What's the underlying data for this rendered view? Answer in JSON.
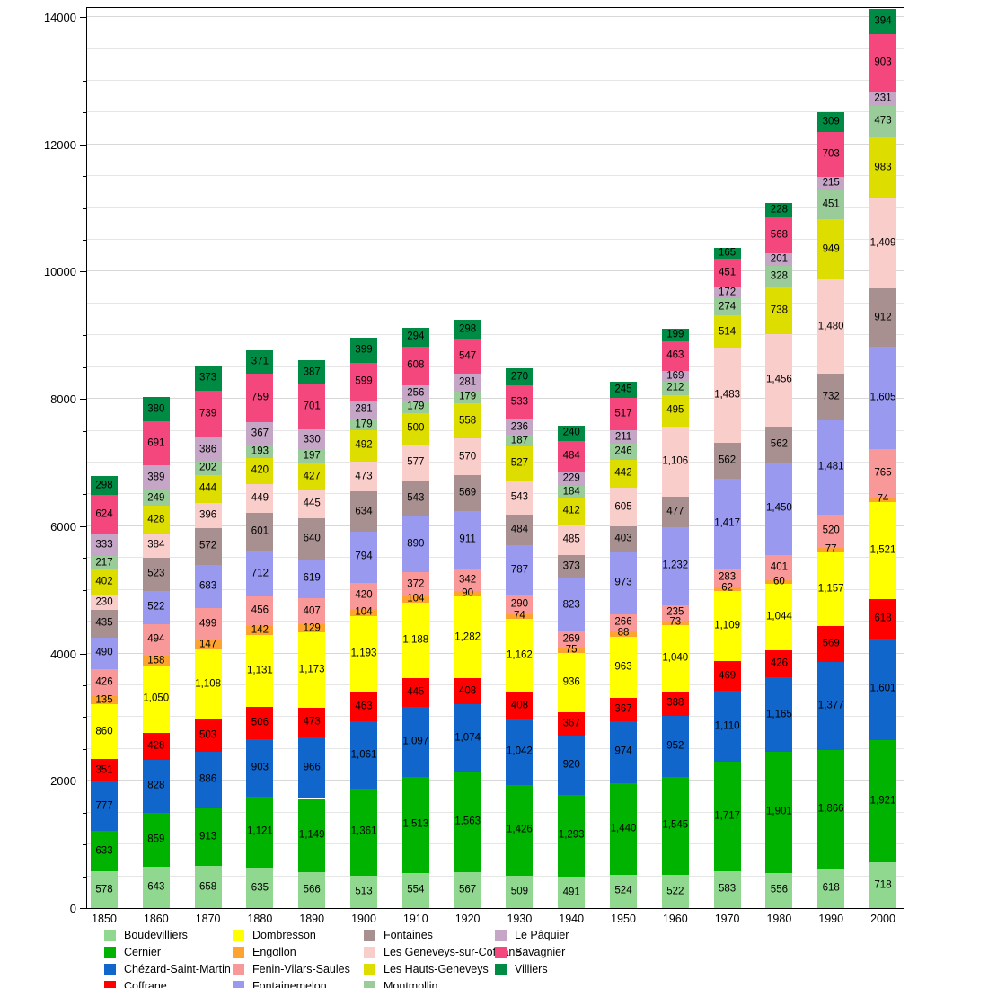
{
  "chart_data": {
    "type": "bar",
    "stacked": true,
    "title": "",
    "xlabel": "",
    "ylabel": "",
    "categories": [
      "1850",
      "1860",
      "1870",
      "1880",
      "1890",
      "1900",
      "1910",
      "1920",
      "1930",
      "1940",
      "1950",
      "1960",
      "1970",
      "1980",
      "1990",
      "2000"
    ],
    "series": [
      {
        "name": "Boudevilliers",
        "color": "#90d890",
        "values": [
          578,
          643,
          658,
          635,
          566,
          513,
          554,
          567,
          509,
          491,
          524,
          522,
          583,
          556,
          618,
          718
        ]
      },
      {
        "name": "Cernier",
        "color": "#00b300",
        "values": [
          633,
          859,
          913,
          1121,
          1149,
          1361,
          1513,
          1563,
          1426,
          1293,
          1440,
          1545,
          1717,
          1901,
          1866,
          1921
        ]
      },
      {
        "name": "Chézard-Saint-Martin",
        "color": "#1166cc",
        "values": [
          777,
          828,
          886,
          903,
          966,
          1061,
          1097,
          1074,
          1042,
          920,
          974,
          952,
          1110,
          1165,
          1377,
          1601
        ]
      },
      {
        "name": "Coffrane",
        "color": "#ff0000",
        "values": [
          351,
          428,
          503,
          506,
          473,
          463,
          445,
          408,
          408,
          367,
          367,
          388,
          469,
          426,
          569,
          618
        ]
      },
      {
        "name": "Dombresson",
        "color": "#ffff00",
        "values": [
          860,
          1050,
          1108,
          1131,
          1173,
          1193,
          1188,
          1282,
          1162,
          936,
          963,
          1040,
          1109,
          1044,
          1157,
          1521
        ]
      },
      {
        "name": "Engollon",
        "color": "#ffa330",
        "values": [
          135,
          158,
          147,
          142,
          129,
          104,
          104,
          90,
          74,
          75,
          88,
          73,
          62,
          60,
          77,
          74
        ]
      },
      {
        "name": "Fenin-Vilars-Saules",
        "color": "#f89898",
        "values": [
          426,
          494,
          499,
          456,
          407,
          420,
          372,
          342,
          290,
          269,
          266,
          235,
          283,
          401,
          520,
          765
        ]
      },
      {
        "name": "Fontainemelon",
        "color": "#9999f0",
        "values": [
          490,
          522,
          683,
          712,
          619,
          794,
          890,
          911,
          787,
          823,
          973,
          1232,
          1417,
          1450,
          1481,
          1605
        ]
      },
      {
        "name": "Fontaines",
        "color": "#a89090",
        "values": [
          435,
          523,
          572,
          601,
          640,
          634,
          543,
          569,
          484,
          373,
          403,
          477,
          562,
          562,
          732,
          912
        ]
      },
      {
        "name": "Les Geneveys-sur-Coffrane",
        "color": "#f9cdca",
        "values": [
          230,
          384,
          396,
          449,
          445,
          473,
          577,
          570,
          543,
          485,
          605,
          1106,
          1483,
          1456,
          1480,
          1409
        ]
      },
      {
        "name": "Les Hauts-Geneveys",
        "color": "#dddd00",
        "values": [
          402,
          428,
          444,
          420,
          427,
          492,
          500,
          558,
          527,
          412,
          442,
          495,
          514,
          738,
          949,
          983
        ]
      },
      {
        "name": "Montmollin",
        "color": "#99cc99",
        "values": [
          217,
          249,
          202,
          193,
          197,
          179,
          179,
          179,
          187,
          184,
          246,
          212,
          274,
          328,
          451,
          473
        ]
      },
      {
        "name": "Le Pâquier",
        "color": "#c6a6c6",
        "values": [
          333,
          389,
          386,
          367,
          330,
          281,
          256,
          281,
          236,
          229,
          211,
          169,
          172,
          201,
          215,
          231
        ]
      },
      {
        "name": "Savagnier",
        "color": "#f4477e",
        "values": [
          624,
          691,
          739,
          759,
          701,
          599,
          608,
          547,
          533,
          484,
          517,
          463,
          451,
          568,
          703,
          903
        ]
      },
      {
        "name": "Villiers",
        "color": "#008b45",
        "values": [
          298,
          380,
          373,
          371,
          387,
          399,
          294,
          298,
          270,
          240,
          245,
          199,
          165,
          228,
          309,
          394
        ]
      }
    ],
    "ylim": [
      0,
      14000
    ],
    "y_tick_labels": [
      "0",
      "2000",
      "4000",
      "6000",
      "8000",
      "10000",
      "12000",
      "14000"
    ],
    "y_tick_interval": 2000,
    "grid_interval": 500,
    "grid": true,
    "legend_position": "bottom",
    "legend_columns": 4
  }
}
